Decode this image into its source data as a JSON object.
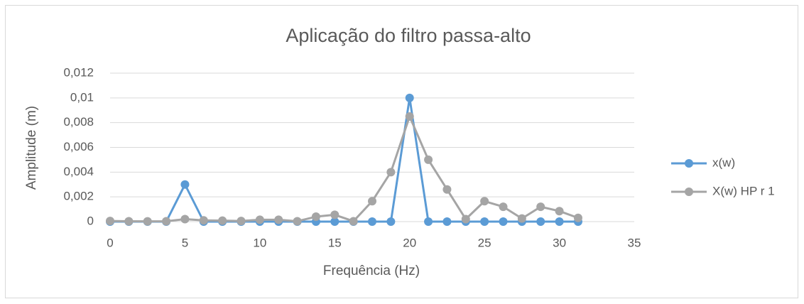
{
  "chart_data": {
    "type": "line",
    "title": "Aplicação do filtro passa-alto",
    "xlabel": "Frequência (Hz)",
    "ylabel": "Amplitude (m)",
    "x": [
      0,
      1.25,
      2.5,
      3.75,
      5,
      6.25,
      7.5,
      8.75,
      10,
      11.25,
      12.5,
      13.75,
      15,
      16.25,
      17.5,
      18.75,
      20,
      21.25,
      22.5,
      23.75,
      25,
      26.25,
      27.5,
      28.75,
      30,
      31.25
    ],
    "series": [
      {
        "name": "x(w)",
        "color": "#5b9bd5",
        "values": [
          0,
          0,
          0,
          0,
          0.003,
          0,
          0,
          0,
          0,
          0,
          0,
          0,
          0,
          0,
          0,
          0,
          0.01,
          0,
          0,
          0,
          0,
          0,
          0,
          0,
          0,
          0
        ]
      },
      {
        "name": "X(w) HP r 1",
        "color": "#a5a5a5",
        "values": [
          5e-05,
          3e-05,
          2e-05,
          3e-05,
          0.0002,
          0.0001,
          8e-05,
          5e-05,
          0.00015,
          0.00015,
          3e-05,
          0.0004,
          0.00055,
          3e-05,
          0.00165,
          0.004,
          0.0085,
          0.005,
          0.0026,
          0.0002,
          0.00165,
          0.0012,
          0.00025,
          0.0012,
          0.00085,
          0.0003
        ]
      }
    ],
    "xlim": [
      0,
      35
    ],
    "xticks": [
      0,
      5,
      10,
      15,
      20,
      25,
      30,
      35
    ],
    "ylim": [
      0,
      0.012
    ],
    "yticks": [
      0,
      {
        "value": 0.002,
        "label": "0,002"
      },
      {
        "value": 0.004,
        "label": "0,004"
      },
      {
        "value": 0.006,
        "label": "0,006"
      },
      {
        "value": 0.008,
        "label": "0,008"
      },
      {
        "value": 0.01,
        "label": "0,01"
      },
      {
        "value": 0.012,
        "label": "0,012"
      }
    ],
    "grid": true,
    "legend": "right"
  }
}
